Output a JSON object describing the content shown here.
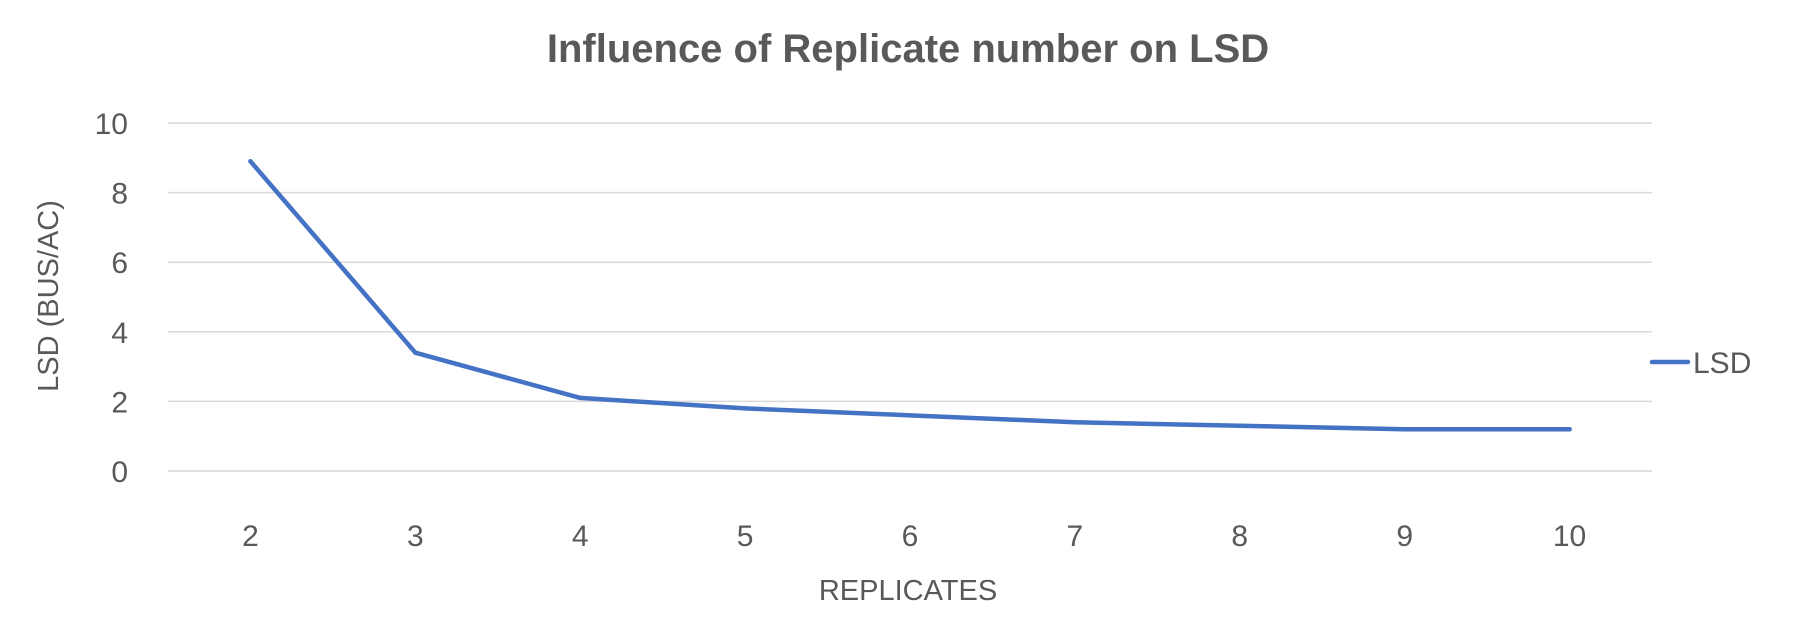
{
  "chart_data": {
    "type": "line",
    "title": "Influence of Replicate number on LSD",
    "xlabel": "REPLICATES",
    "ylabel": "LSD (BUS/AC)",
    "categories": [
      "2",
      "3",
      "4",
      "5",
      "6",
      "7",
      "8",
      "9",
      "10"
    ],
    "series": [
      {
        "name": "LSD",
        "color": "#4472C4",
        "values": [
          8.9,
          3.4,
          2.1,
          1.8,
          1.6,
          1.4,
          1.3,
          1.2,
          1.2
        ]
      }
    ],
    "ylim": [
      0,
      10
    ],
    "yticks": [
      "0",
      "2",
      "4",
      "6",
      "8",
      "10"
    ],
    "grid": true,
    "legend_position": "right"
  }
}
